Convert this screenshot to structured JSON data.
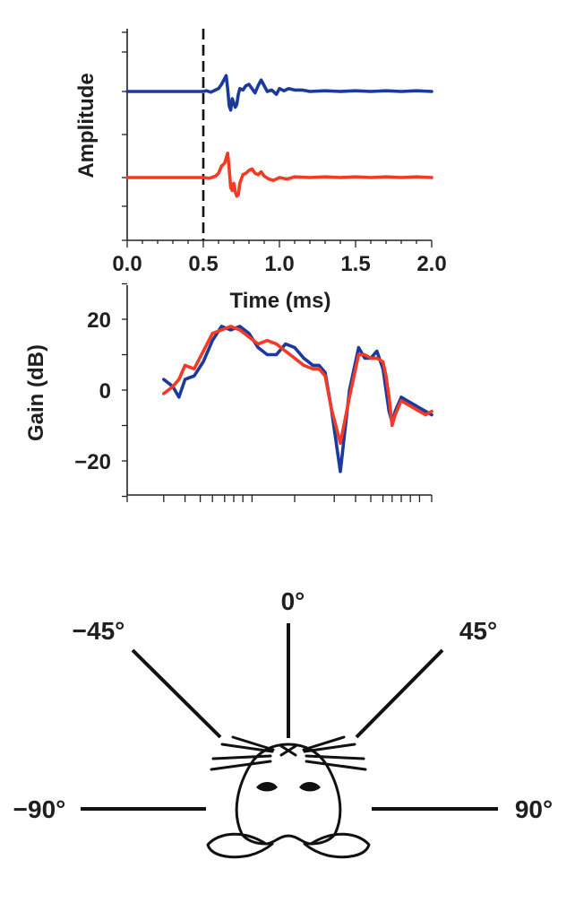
{
  "colors": {
    "blue": "#1c3a9c",
    "red": "#f23a24",
    "axis": "#222222",
    "text": "#1f1f1f"
  },
  "chart_data": [
    {
      "id": "impulse",
      "type": "line",
      "xlabel": "Time (ms)",
      "ylabel": "Amplitude",
      "xlim": [
        0,
        2.0
      ],
      "x_ticks": [
        0.0,
        0.5,
        1.0,
        1.5,
        2.0
      ],
      "x_tick_labels": [
        "0.0",
        "0.5",
        "1.0",
        "1.5",
        "2.0"
      ],
      "onset_marker_x": 0.5,
      "grid": false,
      "series": [
        {
          "color": "blue",
          "x": [
            0,
            0.5,
            0.52,
            0.55,
            0.58,
            0.6,
            0.62,
            0.64,
            0.65,
            0.66,
            0.67,
            0.68,
            0.69,
            0.7,
            0.71,
            0.72,
            0.73,
            0.74,
            0.76,
            0.78,
            0.8,
            0.82,
            0.84,
            0.86,
            0.88,
            0.9,
            0.92,
            0.95,
            0.98,
            1.0,
            1.03,
            1.06,
            1.1,
            1.15,
            1.2,
            1.3,
            1.4,
            1.5,
            1.6,
            1.7,
            1.8,
            1.9,
            2.0
          ],
          "y": [
            0,
            0,
            0.05,
            -0.05,
            0.1,
            0.2,
            0.5,
            0.9,
            1.1,
            0.2,
            -1.0,
            -1.3,
            -0.5,
            -0.8,
            -1.1,
            -0.9,
            -0.2,
            0.2,
            0.1,
            0.4,
            0.5,
            0.2,
            -0.1,
            0.4,
            0.8,
            0.4,
            0.0,
            0.1,
            -0.2,
            0.2,
            0.05,
            0.2,
            0.1,
            0.1,
            0.0,
            0.05,
            0.0,
            0.05,
            0.0,
            0.05,
            0.0,
            0.05,
            0.0
          ]
        },
        {
          "color": "red",
          "x": [
            0,
            0.5,
            0.54,
            0.58,
            0.6,
            0.62,
            0.64,
            0.66,
            0.67,
            0.68,
            0.69,
            0.7,
            0.71,
            0.72,
            0.73,
            0.74,
            0.76,
            0.78,
            0.8,
            0.82,
            0.84,
            0.86,
            0.88,
            0.9,
            0.93,
            0.96,
            1.0,
            1.05,
            1.1,
            1.2,
            1.3,
            1.4,
            1.5,
            1.6,
            1.7,
            1.8,
            1.9,
            2.0
          ],
          "y": [
            0,
            0,
            -0.05,
            0.1,
            0.3,
            0.8,
            1.0,
            1.7,
            0.6,
            -0.7,
            -0.9,
            -0.4,
            -1.0,
            -1.3,
            -1.2,
            -0.4,
            0.2,
            0.3,
            0.5,
            0.6,
            0.3,
            0.2,
            0.4,
            0.1,
            -0.1,
            -0.2,
            0.0,
            -0.1,
            0.05,
            0.0,
            0.05,
            0.0,
            0.05,
            0.0,
            0.05,
            0.0,
            0.05,
            0.0
          ]
        }
      ]
    },
    {
      "id": "gain",
      "type": "line",
      "xlabel": "",
      "ylabel": "Gain (dB)",
      "ylim": [
        -30,
        30
      ],
      "y_ticks": [
        -20,
        0,
        20
      ],
      "y_tick_labels": [
        "−20",
        "0",
        "20"
      ],
      "x_range_normalized": [
        0,
        1
      ],
      "grid": false,
      "series": [
        {
          "color": "blue",
          "x": [
            0.12,
            0.15,
            0.17,
            0.19,
            0.22,
            0.25,
            0.28,
            0.31,
            0.34,
            0.37,
            0.4,
            0.43,
            0.46,
            0.49,
            0.52,
            0.55,
            0.58,
            0.61,
            0.63,
            0.65,
            0.67,
            0.7,
            0.73,
            0.76,
            0.78,
            0.8,
            0.82,
            0.84,
            0.85,
            0.86,
            0.87,
            0.88,
            0.9,
            0.92,
            0.94,
            0.96,
            0.98,
            1.0
          ],
          "y": [
            3,
            1,
            -2,
            3,
            4,
            8,
            14,
            18,
            17,
            18,
            16,
            12,
            10,
            10,
            13,
            12,
            9,
            7,
            7,
            5,
            -5,
            -23,
            0,
            12,
            9,
            9,
            11,
            6,
            0,
            -6,
            -9,
            -6,
            -2,
            -3,
            -4,
            -5,
            -6,
            -7
          ]
        },
        {
          "color": "red",
          "x": [
            0.12,
            0.15,
            0.17,
            0.19,
            0.22,
            0.25,
            0.28,
            0.31,
            0.34,
            0.37,
            0.4,
            0.43,
            0.46,
            0.49,
            0.52,
            0.55,
            0.58,
            0.61,
            0.63,
            0.65,
            0.67,
            0.7,
            0.73,
            0.76,
            0.78,
            0.8,
            0.82,
            0.84,
            0.85,
            0.86,
            0.87,
            0.88,
            0.9,
            0.92,
            0.94,
            0.96,
            0.98,
            1.0
          ],
          "y": [
            -1,
            1,
            3,
            7,
            6,
            11,
            16,
            17,
            18,
            17,
            15,
            13,
            14,
            13,
            11,
            9,
            7,
            6,
            6,
            4,
            -5,
            -15,
            -2,
            10,
            10,
            9,
            9,
            8,
            4,
            -2,
            -10,
            -7,
            -3,
            -4,
            -5,
            -6,
            -7,
            -6
          ]
        }
      ]
    }
  ],
  "directions": [
    {
      "angle": -90,
      "label": "−90°"
    },
    {
      "angle": -45,
      "label": "−45°"
    },
    {
      "angle": 0,
      "label": "0°"
    },
    {
      "angle": 45,
      "label": "45°"
    },
    {
      "angle": 90,
      "label": "90°"
    }
  ]
}
